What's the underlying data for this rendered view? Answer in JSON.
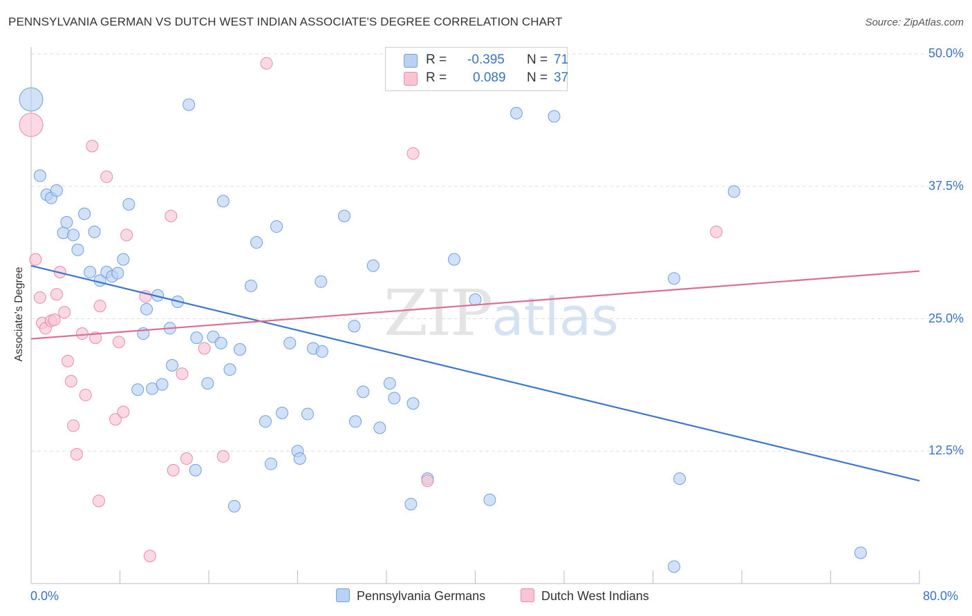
{
  "title": "PENNSYLVANIA GERMAN VS DUTCH WEST INDIAN ASSOCIATE'S DEGREE CORRELATION CHART",
  "source": "Source: ZipAtlas.com",
  "watermark": {
    "zip": "ZIP",
    "atlas": "atlas"
  },
  "legend": {
    "rows": [
      {
        "r_key": "R =",
        "r_value": "-0.395",
        "n_key": "N =",
        "n_value": "71",
        "color": "#b9d1f2"
      },
      {
        "r_key": "R =",
        "r_value": "0.089",
        "n_key": "N =",
        "n_value": "37",
        "color": "#f9c5d5"
      }
    ]
  },
  "bottom_legend": [
    {
      "label": "Pennsylvania Germans",
      "color": "#b9d1f2"
    },
    {
      "label": "Dutch West Indians",
      "color": "#f9c5d5"
    }
  ],
  "chart_data": {
    "type": "scatter",
    "title": "PENNSYLVANIA GERMAN VS DUTCH WEST INDIAN ASSOCIATE'S DEGREE CORRELATION CHART",
    "xlabel": "",
    "ylabel": "Associate's Degree",
    "xlim": [
      0,
      80
    ],
    "ylim": [
      0,
      50
    ],
    "x_tick_labels": [
      "0.0%",
      "80.0%"
    ],
    "y_ticks": [
      12.5,
      25.0,
      37.5,
      50.0
    ],
    "y_tick_labels": [
      "12.5%",
      "25.0%",
      "37.5%",
      "50.0%"
    ],
    "grid": true,
    "legend_position": "top-center",
    "series": [
      {
        "name": "Pennsylvania Germans",
        "color": "#6f9fdc",
        "fill": "#b9d1f2",
        "trend": {
          "x": [
            0,
            80
          ],
          "y": [
            30.0,
            9.7
          ]
        },
        "points": [
          {
            "x": 0.0,
            "y": 45.7,
            "big": true
          },
          {
            "x": 0.8,
            "y": 38.5
          },
          {
            "x": 1.4,
            "y": 36.7
          },
          {
            "x": 1.8,
            "y": 36.4
          },
          {
            "x": 2.3,
            "y": 37.1
          },
          {
            "x": 2.9,
            "y": 33.1
          },
          {
            "x": 3.2,
            "y": 34.1
          },
          {
            "x": 3.8,
            "y": 32.9
          },
          {
            "x": 4.2,
            "y": 31.5
          },
          {
            "x": 4.8,
            "y": 34.9
          },
          {
            "x": 5.3,
            "y": 29.4
          },
          {
            "x": 5.7,
            "y": 33.2
          },
          {
            "x": 6.2,
            "y": 28.6
          },
          {
            "x": 6.8,
            "y": 29.4
          },
          {
            "x": 7.3,
            "y": 29.0
          },
          {
            "x": 7.8,
            "y": 29.3
          },
          {
            "x": 8.3,
            "y": 30.6
          },
          {
            "x": 8.8,
            "y": 35.8
          },
          {
            "x": 9.6,
            "y": 18.3
          },
          {
            "x": 10.1,
            "y": 23.6
          },
          {
            "x": 10.4,
            "y": 25.9
          },
          {
            "x": 10.9,
            "y": 18.4
          },
          {
            "x": 11.4,
            "y": 27.2
          },
          {
            "x": 11.8,
            "y": 18.8
          },
          {
            "x": 12.5,
            "y": 24.1
          },
          {
            "x": 12.7,
            "y": 20.6
          },
          {
            "x": 13.2,
            "y": 26.6
          },
          {
            "x": 14.2,
            "y": 45.2
          },
          {
            "x": 14.8,
            "y": 10.7
          },
          {
            "x": 14.9,
            "y": 23.2
          },
          {
            "x": 15.9,
            "y": 18.9
          },
          {
            "x": 16.4,
            "y": 23.3
          },
          {
            "x": 17.1,
            "y": 22.7
          },
          {
            "x": 17.3,
            "y": 36.1
          },
          {
            "x": 17.9,
            "y": 20.2
          },
          {
            "x": 18.3,
            "y": 7.3
          },
          {
            "x": 18.8,
            "y": 22.1
          },
          {
            "x": 19.8,
            "y": 28.1
          },
          {
            "x": 20.3,
            "y": 32.2
          },
          {
            "x": 21.1,
            "y": 15.3
          },
          {
            "x": 21.6,
            "y": 11.3
          },
          {
            "x": 22.1,
            "y": 33.7
          },
          {
            "x": 22.6,
            "y": 16.1
          },
          {
            "x": 23.3,
            "y": 22.7
          },
          {
            "x": 24.0,
            "y": 12.5
          },
          {
            "x": 24.2,
            "y": 11.8
          },
          {
            "x": 24.9,
            "y": 16.0
          },
          {
            "x": 25.4,
            "y": 22.2
          },
          {
            "x": 26.1,
            "y": 28.5
          },
          {
            "x": 26.2,
            "y": 21.9
          },
          {
            "x": 28.2,
            "y": 34.7
          },
          {
            "x": 29.1,
            "y": 24.3
          },
          {
            "x": 29.2,
            "y": 15.3
          },
          {
            "x": 29.9,
            "y": 18.1
          },
          {
            "x": 30.8,
            "y": 30.0
          },
          {
            "x": 31.4,
            "y": 14.7
          },
          {
            "x": 32.3,
            "y": 18.9
          },
          {
            "x": 32.7,
            "y": 17.5
          },
          {
            "x": 34.2,
            "y": 7.5
          },
          {
            "x": 34.4,
            "y": 17.0
          },
          {
            "x": 35.7,
            "y": 9.9
          },
          {
            "x": 38.1,
            "y": 30.6
          },
          {
            "x": 40.0,
            "y": 26.8
          },
          {
            "x": 41.3,
            "y": 7.9
          },
          {
            "x": 43.7,
            "y": 44.4
          },
          {
            "x": 47.1,
            "y": 44.1
          },
          {
            "x": 57.9,
            "y": 1.6
          },
          {
            "x": 57.9,
            "y": 28.8
          },
          {
            "x": 58.4,
            "y": 9.9
          },
          {
            "x": 63.3,
            "y": 37.0
          },
          {
            "x": 74.7,
            "y": 2.9
          }
        ]
      },
      {
        "name": "Dutch West Indians",
        "color": "#e98aa9",
        "fill": "#f9c5d5",
        "trend": {
          "x": [
            0,
            80
          ],
          "y": [
            23.1,
            29.5
          ]
        },
        "points": [
          {
            "x": 0.0,
            "y": 43.3,
            "big": true
          },
          {
            "x": 0.4,
            "y": 30.6
          },
          {
            "x": 0.8,
            "y": 27.0
          },
          {
            "x": 1.0,
            "y": 24.6
          },
          {
            "x": 1.3,
            "y": 24.1
          },
          {
            "x": 1.8,
            "y": 24.8
          },
          {
            "x": 2.1,
            "y": 24.9
          },
          {
            "x": 2.3,
            "y": 27.3
          },
          {
            "x": 2.6,
            "y": 29.4
          },
          {
            "x": 3.0,
            "y": 25.6
          },
          {
            "x": 3.3,
            "y": 21.0
          },
          {
            "x": 3.6,
            "y": 19.1
          },
          {
            "x": 3.8,
            "y": 14.9
          },
          {
            "x": 4.1,
            "y": 12.2
          },
          {
            "x": 4.6,
            "y": 23.6
          },
          {
            "x": 4.9,
            "y": 17.8
          },
          {
            "x": 5.5,
            "y": 41.3
          },
          {
            "x": 5.8,
            "y": 23.2
          },
          {
            "x": 6.1,
            "y": 7.8
          },
          {
            "x": 6.2,
            "y": 26.2
          },
          {
            "x": 6.8,
            "y": 38.4
          },
          {
            "x": 7.6,
            "y": 15.5
          },
          {
            "x": 7.9,
            "y": 22.8
          },
          {
            "x": 8.3,
            "y": 16.2
          },
          {
            "x": 8.6,
            "y": 32.9
          },
          {
            "x": 10.3,
            "y": 27.1
          },
          {
            "x": 10.7,
            "y": 2.6
          },
          {
            "x": 12.6,
            "y": 34.7
          },
          {
            "x": 12.8,
            "y": 10.7
          },
          {
            "x": 13.6,
            "y": 19.8
          },
          {
            "x": 14.0,
            "y": 11.8
          },
          {
            "x": 15.6,
            "y": 22.2
          },
          {
            "x": 17.3,
            "y": 12.0
          },
          {
            "x": 21.2,
            "y": 49.1
          },
          {
            "x": 34.4,
            "y": 40.6
          },
          {
            "x": 35.7,
            "y": 9.7
          },
          {
            "x": 61.7,
            "y": 33.2
          }
        ]
      }
    ]
  }
}
